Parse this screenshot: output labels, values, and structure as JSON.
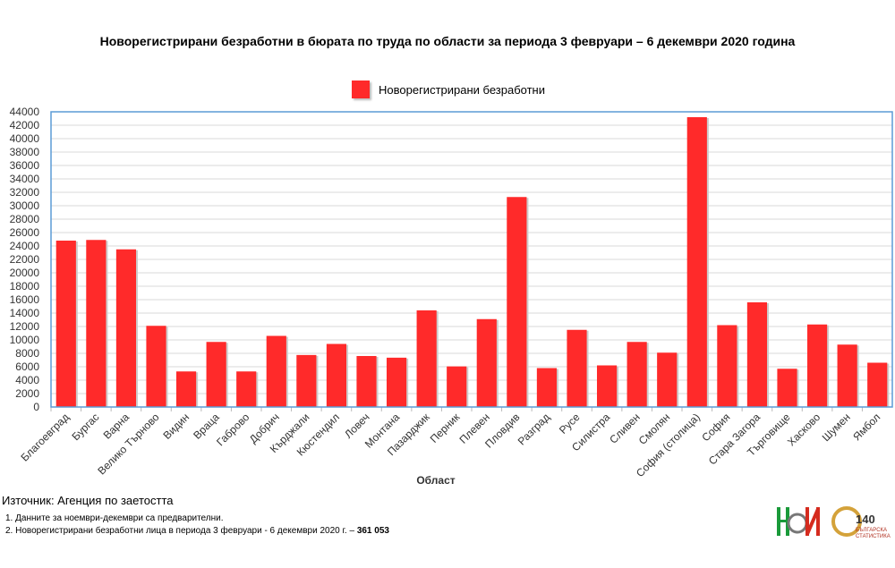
{
  "chart_data": {
    "type": "bar",
    "title": "Новорегистрирани безработни в бюрата по труда по области за периода 3 февруари – 6 декември 2020 година",
    "xlabel": "Област",
    "ylabel": "",
    "ylim": [
      0,
      44000
    ],
    "yticks": [
      0,
      2000,
      4000,
      6000,
      8000,
      10000,
      12000,
      14000,
      16000,
      18000,
      20000,
      22000,
      24000,
      26000,
      28000,
      30000,
      32000,
      34000,
      36000,
      38000,
      40000,
      42000,
      44000
    ],
    "grid": true,
    "legend": {
      "position": "top",
      "entries": [
        "Новорегистрирани безработни"
      ]
    },
    "categories": [
      "Благоевград",
      "Бургас",
      "Варна",
      "Велико Търново",
      "Видин",
      "Враца",
      "Габрово",
      "Добрич",
      "Кърджали",
      "Кюстендил",
      "Ловеч",
      "Монтана",
      "Пазарджик",
      "Перник",
      "Плевен",
      "Пловдив",
      "Разград",
      "Русе",
      "Силистра",
      "Сливен",
      "Смолян",
      "София (столица)",
      "София",
      "Стара Загора",
      "Търговище",
      "Хасково",
      "Шумен",
      "Ямбол"
    ],
    "series": [
      {
        "name": "Новорегистрирани безработни",
        "color": "#ff2a2a",
        "values": [
          24800,
          24900,
          23500,
          12100,
          5300,
          9700,
          5300,
          10600,
          7750,
          9400,
          7600,
          7350,
          14400,
          6050,
          13100,
          31300,
          5800,
          11500,
          6200,
          9700,
          8100,
          43200,
          12200,
          15600,
          5700,
          12300,
          9300,
          6600
        ]
      }
    ]
  },
  "source": "Източник: Агенция по заетостта",
  "notes": [
    "1.  Данните за ноември-декември  са предварителни.",
    "2.  Новорегистрирани безработни лица в периода 3 февруари - 6 декември  2020 г. – ",
    "361 053"
  ],
  "logo": {
    "nsi": "НСИ",
    "anniversary": "140",
    "anniv_sub": "години",
    "brand": "БЪЛГАРСКА СТАТИСТИКА"
  }
}
